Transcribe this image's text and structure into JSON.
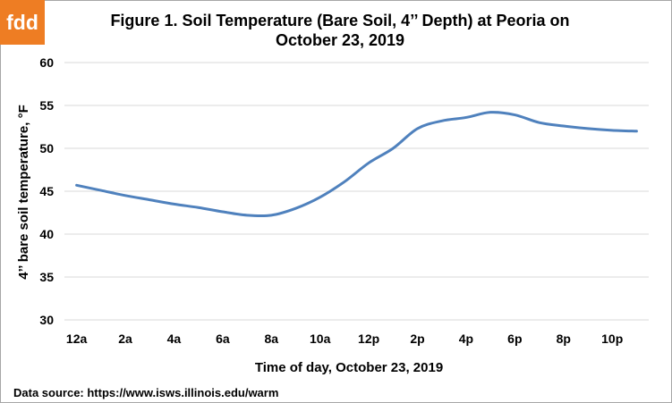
{
  "logo": {
    "text": "fdd",
    "bg": "#ee7d23"
  },
  "footer": {
    "source": "Data source: https://www.isws.illinois.edu/warm"
  },
  "chart_data": {
    "type": "line",
    "title_line1": "Figure 1. Soil Temperature (Bare Soil, 4’’ Depth) at Peoria on",
    "title_line2": "October 23, 2019",
    "xlabel": "Time of day, October 23, 2019",
    "ylabel": "4’’ bare soil temperature, °F",
    "ylim": [
      30,
      60
    ],
    "yticks": [
      30,
      35,
      40,
      45,
      50,
      55,
      60
    ],
    "x_tick_labels": [
      "12a",
      "2a",
      "4a",
      "6a",
      "8a",
      "10a",
      "12p",
      "2p",
      "4p",
      "6p",
      "8p",
      "10p"
    ],
    "grid": true,
    "line_color": "#4f81bd",
    "series": [
      {
        "hours": [
          0,
          1,
          2,
          3,
          4,
          5,
          6,
          7,
          8,
          9,
          10,
          11,
          12,
          13,
          14,
          15,
          16,
          17,
          18,
          19,
          20,
          21,
          22,
          23
        ],
        "values": [
          45.7,
          45.1,
          44.5,
          44.0,
          43.5,
          43.1,
          42.6,
          42.2,
          42.2,
          43.0,
          44.3,
          46.1,
          48.3,
          50.0,
          52.3,
          53.2,
          53.6,
          54.2,
          53.9,
          53.0,
          52.6,
          52.3,
          52.1,
          52.0
        ]
      }
    ]
  }
}
